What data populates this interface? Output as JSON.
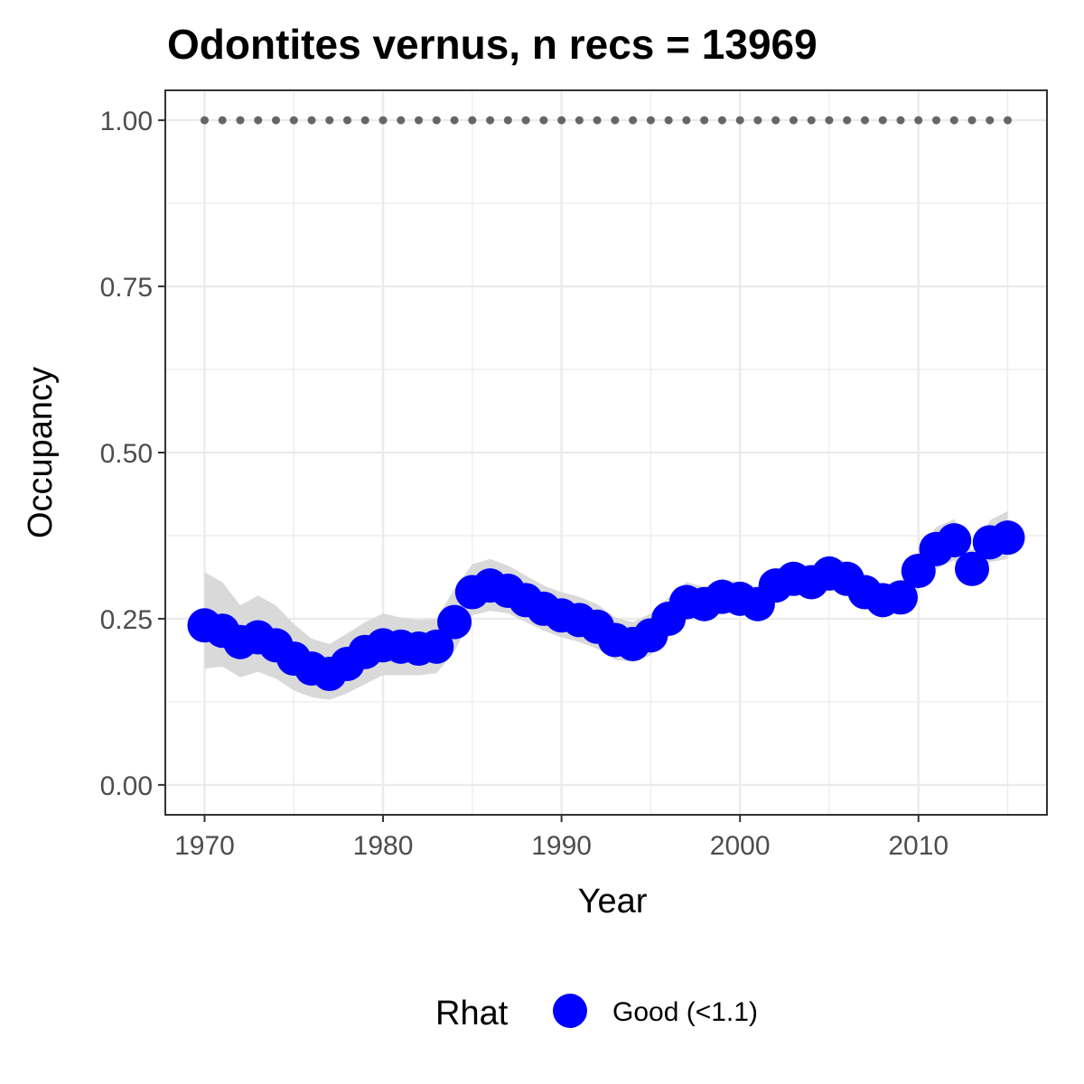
{
  "chart_data": {
    "type": "line",
    "title": "Odontites vernus, n recs = 13969",
    "xlabel": "Year",
    "ylabel": "Occupancy",
    "xlim": [
      1967.8,
      1971.2
    ],
    "xlim_full": [
      1967.8,
      2017.2
    ],
    "ylim": [
      -0.045,
      1.045
    ],
    "x_ticks": [
      1970,
      1980,
      1990,
      2000,
      2010
    ],
    "x_tick_labels": [
      "1970",
      "1980",
      "1990",
      "2000",
      "2010"
    ],
    "y_ticks": [
      0.0,
      0.25,
      0.5,
      0.75,
      1.0
    ],
    "y_tick_labels": [
      "0.00",
      "0.25",
      "0.50",
      "0.75",
      "1.00"
    ],
    "grid": true,
    "x": [
      1970,
      1971,
      1972,
      1973,
      1974,
      1975,
      1976,
      1977,
      1978,
      1979,
      1980,
      1981,
      1982,
      1983,
      1984,
      1985,
      1986,
      1987,
      1988,
      1989,
      1990,
      1991,
      1992,
      1993,
      1994,
      1995,
      1996,
      1997,
      1998,
      1999,
      2000,
      2001,
      2002,
      2003,
      2004,
      2005,
      2006,
      2007,
      2008,
      2009,
      2010,
      2011,
      2012,
      2013,
      2014,
      2015
    ],
    "series": [
      {
        "values": [
          0.24,
          0.232,
          0.215,
          0.222,
          0.21,
          0.19,
          0.175,
          0.167,
          0.182,
          0.2,
          0.21,
          0.208,
          0.205,
          0.208,
          0.245,
          0.29,
          0.3,
          0.292,
          0.278,
          0.265,
          0.255,
          0.248,
          0.238,
          0.218,
          0.212,
          0.225,
          0.25,
          0.275,
          0.272,
          0.283,
          0.28,
          0.272,
          0.3,
          0.31,
          0.305,
          0.318,
          0.31,
          0.29,
          0.278,
          0.282,
          0.322,
          0.355,
          0.368,
          0.325,
          0.365,
          0.372
        ],
        "lower": [
          0.175,
          0.178,
          0.162,
          0.17,
          0.16,
          0.142,
          0.132,
          0.128,
          0.138,
          0.152,
          0.165,
          0.165,
          0.165,
          0.168,
          0.2,
          0.255,
          0.262,
          0.258,
          0.245,
          0.232,
          0.222,
          0.215,
          0.205,
          0.188,
          0.185,
          0.195,
          0.222,
          0.248,
          0.25,
          0.258,
          0.258,
          0.252,
          0.275,
          0.288,
          0.285,
          0.295,
          0.29,
          0.272,
          0.26,
          0.262,
          0.295,
          0.325,
          0.338,
          0.3,
          0.335,
          0.34
        ],
        "upper": [
          0.32,
          0.305,
          0.27,
          0.285,
          0.27,
          0.242,
          0.22,
          0.212,
          0.228,
          0.245,
          0.258,
          0.252,
          0.248,
          0.25,
          0.295,
          0.332,
          0.34,
          0.33,
          0.315,
          0.3,
          0.29,
          0.283,
          0.272,
          0.252,
          0.245,
          0.258,
          0.282,
          0.305,
          0.298,
          0.31,
          0.305,
          0.298,
          0.325,
          0.335,
          0.328,
          0.345,
          0.335,
          0.312,
          0.3,
          0.305,
          0.352,
          0.388,
          0.4,
          0.352,
          0.398,
          0.412
        ],
        "color": "#0000ff"
      }
    ],
    "reference_line": {
      "y": 1.0,
      "x_start": 1970,
      "x_end": 2015,
      "style": "dotted",
      "color": "#666666"
    },
    "ribbon_color": "#d9d9d9",
    "legend": {
      "title": "Rhat",
      "entries": [
        "Good (<1.1)"
      ],
      "colors": [
        "#0000ff"
      ],
      "placement": "bottom"
    }
  }
}
